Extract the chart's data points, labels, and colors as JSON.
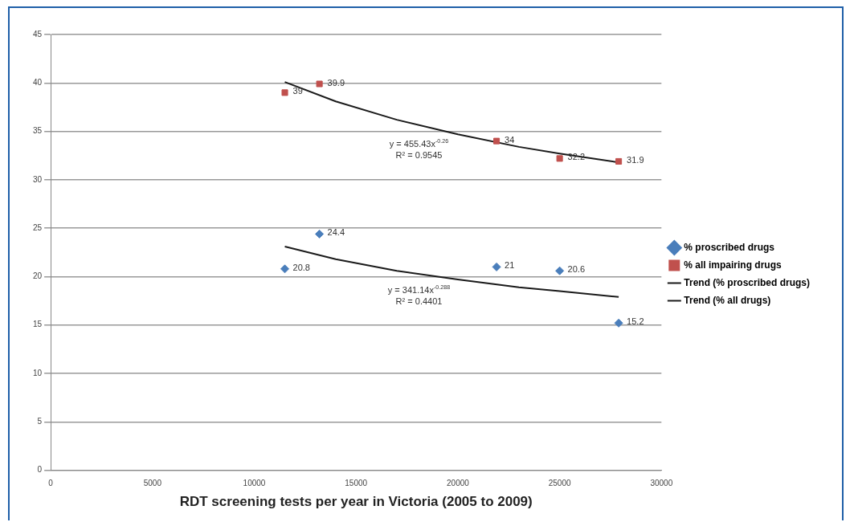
{
  "chart_data": {
    "type": "scatter",
    "xlabel": "RDT screening tests per year in Victoria (2005 to 2009)",
    "xlim": [
      0,
      30000
    ],
    "xticks": [
      0,
      5000,
      10000,
      15000,
      20000,
      25000,
      30000
    ],
    "ylim": [
      0,
      45
    ],
    "yticks": [
      0,
      5,
      10,
      15,
      20,
      25,
      30,
      35,
      40,
      45
    ],
    "grid": "y",
    "legend": "right",
    "series": [
      {
        "name": "% proscribed drugs",
        "type": "scatter",
        "marker": "diamond",
        "color": "#4a7ebb",
        "x": [
          11500,
          13200,
          21900,
          25000,
          27900
        ],
        "values": [
          20.8,
          24.4,
          21,
          20.6,
          15.2
        ],
        "value_labels": [
          "20.8",
          "24.4",
          "21",
          "20.6",
          "15.2"
        ]
      },
      {
        "name": "% all impairing drugs",
        "type": "scatter",
        "marker": "square",
        "color": "#c0504d",
        "x": [
          11500,
          13200,
          21900,
          25000,
          27900
        ],
        "values": [
          39,
          39.9,
          34,
          32.2,
          31.9
        ],
        "value_labels": [
          "39",
          "39.9",
          "34",
          "32.2",
          "31.9"
        ]
      },
      {
        "name": "Trend (% proscribed drugs)",
        "type": "line",
        "marker": "none",
        "color": "#1a1a1a",
        "x": [
          11500,
          14000,
          17000,
          20000,
          23000,
          25000,
          27900
        ],
        "values": [
          23.1,
          21.8,
          20.6,
          19.7,
          18.9,
          18.5,
          17.9
        ]
      },
      {
        "name": "Trend (% all drugs)",
        "type": "line",
        "marker": "none",
        "color": "#1a1a1a",
        "x": [
          11500,
          14000,
          17000,
          20000,
          23000,
          25000,
          27900
        ],
        "values": [
          40.1,
          38.1,
          36.2,
          34.7,
          33.4,
          32.7,
          31.8
        ]
      }
    ],
    "annotations": [
      "y = 455.43x$^{-0.26}$",
      "R² = 0.9545",
      "y = 341.14x$^{-0.288}$",
      "R² = 0.4401"
    ]
  }
}
